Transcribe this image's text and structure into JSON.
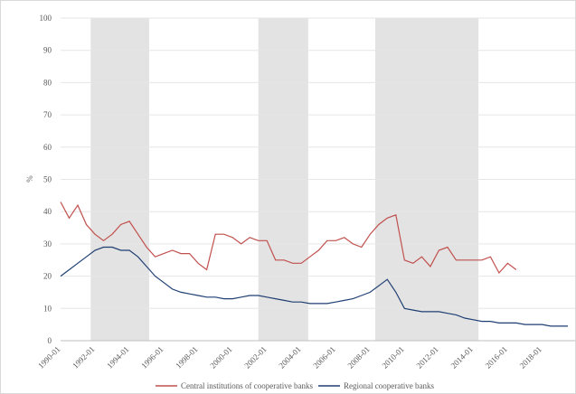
{
  "chart_data": {
    "type": "line",
    "y_label": "%",
    "categories": [
      "1990-01",
      null,
      null,
      null,
      "1992-01",
      null,
      null,
      null,
      "1994-01",
      null,
      null,
      null,
      "1996-01",
      null,
      null,
      null,
      "1998-01",
      null,
      null,
      null,
      "2000-01",
      null,
      null,
      null,
      "2002-01",
      null,
      null,
      null,
      "2004-01",
      null,
      null,
      null,
      "2006-01",
      null,
      null,
      null,
      "2008-01",
      null,
      null,
      null,
      "2010-01",
      null,
      null,
      null,
      "2012-01",
      null,
      null,
      null,
      "2014-01",
      null,
      null,
      null,
      "2016-01",
      null,
      null,
      null,
      "2018-01",
      null,
      null,
      null
    ],
    "series": [
      {
        "name": "Central institutions of cooperative banks",
        "color": "#c0504d",
        "values": [
          43,
          38,
          42,
          36,
          33,
          31,
          33,
          36,
          37,
          33,
          29,
          26,
          27,
          28,
          27,
          27,
          24,
          22,
          33,
          33,
          32,
          30,
          32,
          31,
          31,
          25,
          25,
          24,
          24,
          26,
          28,
          31,
          31,
          32,
          30,
          29,
          33,
          36,
          38,
          39,
          25,
          24,
          26,
          23,
          28,
          29,
          25,
          25,
          25,
          25,
          26,
          21,
          24,
          22,
          null,
          null,
          null,
          null,
          null,
          null
        ]
      },
      {
        "name": "Regional cooperative banks",
        "color": "#1f3f73",
        "values": [
          20,
          22,
          24,
          26,
          28,
          29,
          29,
          28,
          28,
          26,
          23,
          20,
          18,
          16,
          15,
          14.5,
          14,
          13.5,
          13.5,
          13,
          13,
          13.5,
          14,
          14,
          13.5,
          13,
          12.5,
          12,
          12,
          11.5,
          11.5,
          11.5,
          12,
          12.5,
          13,
          14,
          15,
          17,
          19,
          15,
          10,
          9.5,
          9,
          9,
          9,
          8.5,
          8,
          7,
          6.5,
          6,
          6,
          5.5,
          5.5,
          5.5,
          5,
          5,
          5,
          4.5,
          4.5,
          4.5
        ]
      }
    ],
    "shaded_periods": [
      [
        3.5,
        10.3
      ],
      [
        23,
        28.8
      ],
      [
        36.6,
        48.6
      ]
    ],
    "ylim": [
      0,
      100
    ],
    "yticks": [
      0,
      10,
      20,
      30,
      40,
      50,
      60,
      70,
      80,
      90,
      100
    ],
    "grid": true,
    "legend": "bottom"
  }
}
